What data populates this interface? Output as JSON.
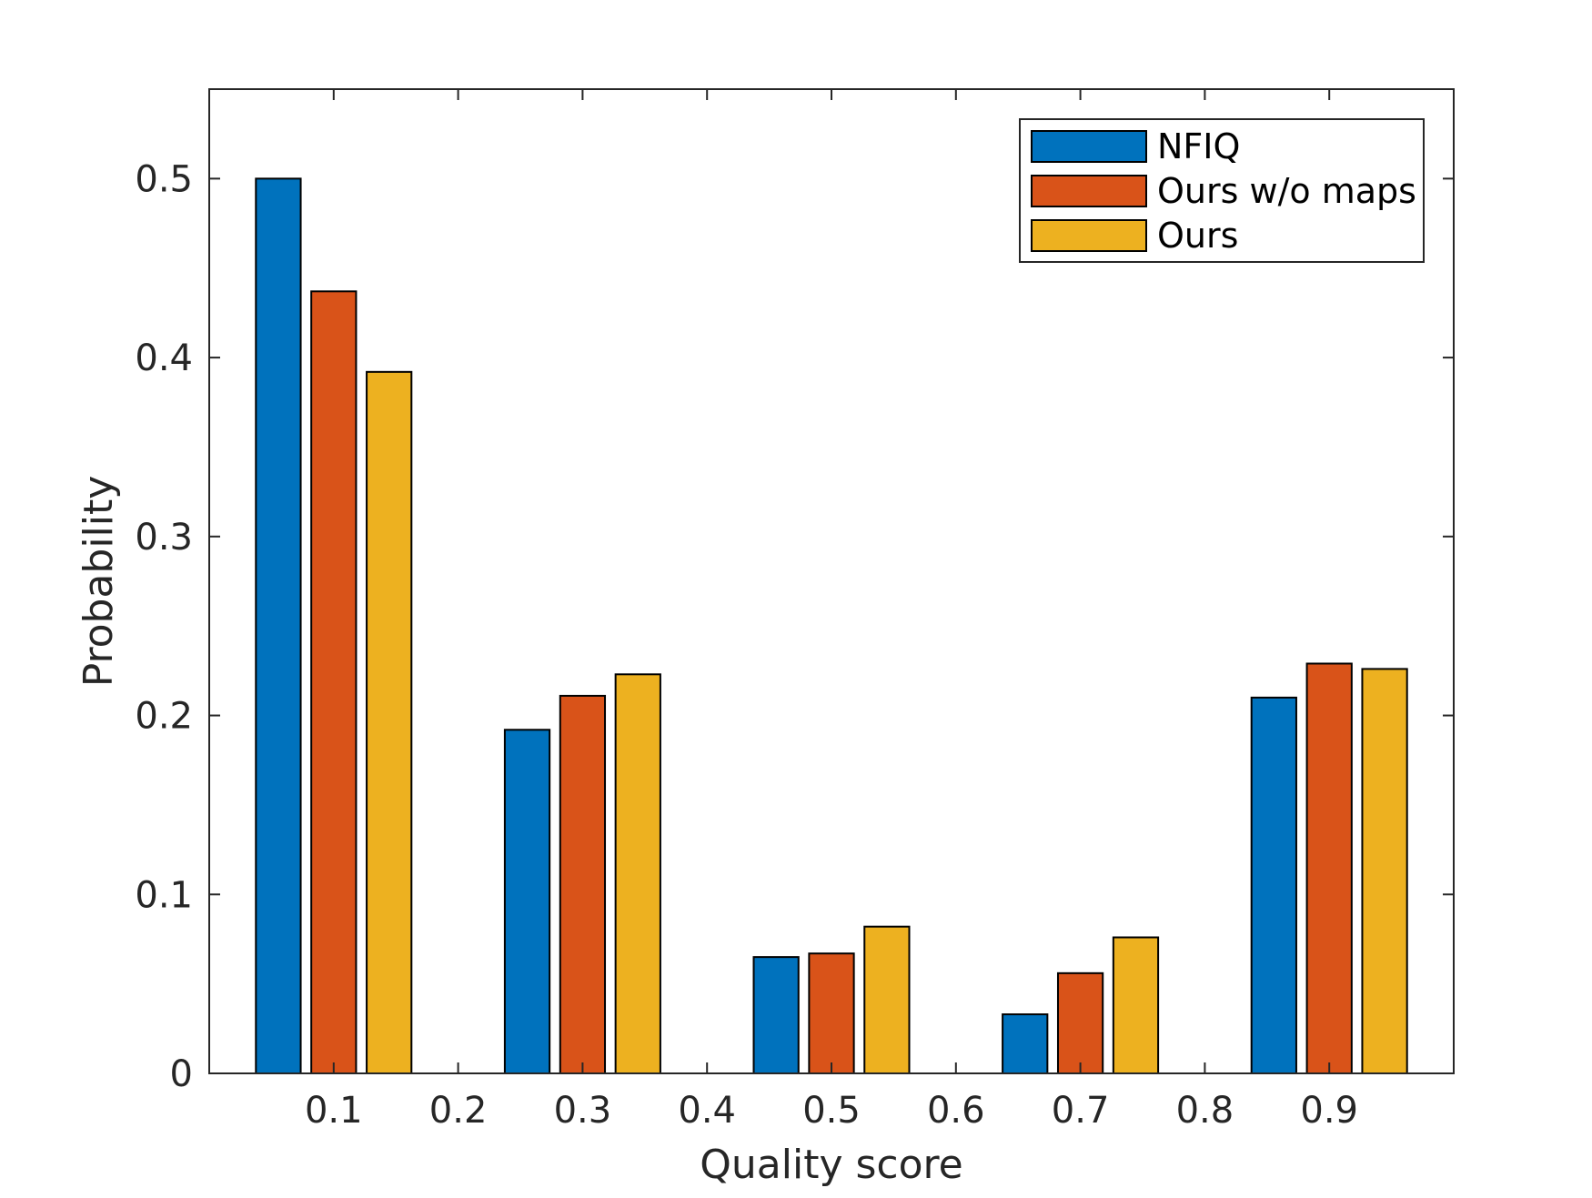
{
  "chart_data": {
    "type": "bar",
    "title": "",
    "xlabel": "Quality score",
    "ylabel": "Probability",
    "categories": [
      "0.1",
      "0.3",
      "0.5",
      "0.7",
      "0.9"
    ],
    "x": [
      0.1,
      0.3,
      0.5,
      0.7,
      0.9
    ],
    "xlim": [
      0.0,
      1.0
    ],
    "ylim": [
      0,
      0.55
    ],
    "xticks": [
      "0.1",
      "0.2",
      "0.3",
      "0.4",
      "0.5",
      "0.6",
      "0.7",
      "0.8",
      "0.9"
    ],
    "xtick_values": [
      0.1,
      0.2,
      0.3,
      0.4,
      0.5,
      0.6,
      0.7,
      0.8,
      0.9
    ],
    "yticks": [
      "0",
      "0.1",
      "0.2",
      "0.3",
      "0.4",
      "0.5"
    ],
    "ytick_values": [
      0,
      0.1,
      0.2,
      0.3,
      0.4,
      0.5
    ],
    "grid": false,
    "legend_position": "top-right",
    "series": [
      {
        "name": "NFIQ",
        "color": "#0072BD",
        "values": [
          0.5,
          0.192,
          0.065,
          0.033,
          0.21
        ]
      },
      {
        "name": "Ours w/o maps",
        "color": "#D95319",
        "values": [
          0.437,
          0.211,
          0.067,
          0.056,
          0.229
        ]
      },
      {
        "name": "Ours",
        "color": "#EDB120",
        "values": [
          0.392,
          0.223,
          0.082,
          0.076,
          0.226
        ]
      }
    ]
  }
}
